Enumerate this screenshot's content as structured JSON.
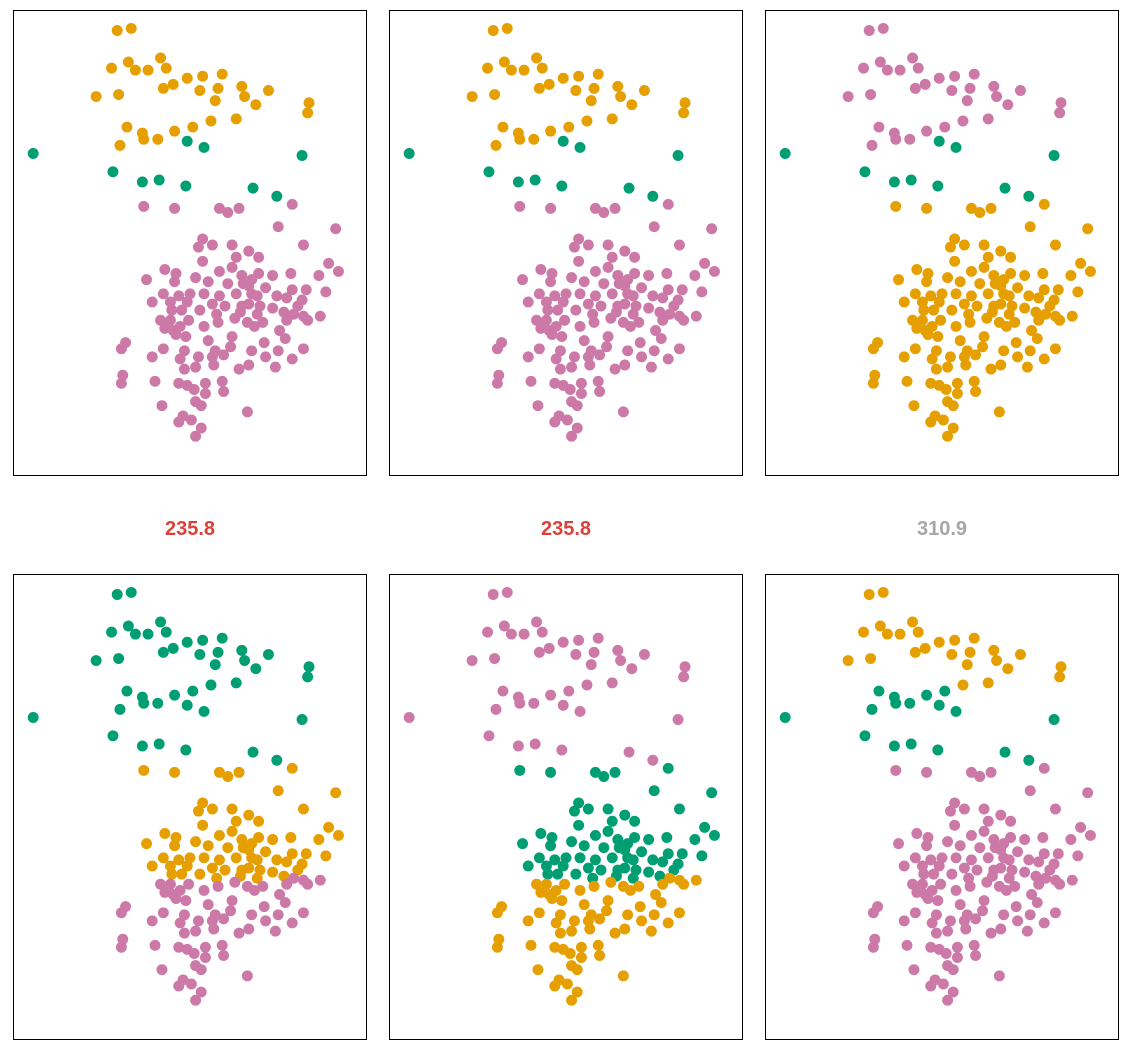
{
  "colors": {
    "orange": "#E69F00",
    "green": "#009E73",
    "pink": "#CC79A7"
  },
  "scores": [
    {
      "label": "235.8",
      "color": "#D9413A"
    },
    {
      "label": "235.8",
      "color": "#D9413A"
    },
    {
      "label": "310.9",
      "color": "#A6A6A6"
    }
  ],
  "chart_data": {
    "type": "scatter",
    "points": [
      [
        2.8,
        0.55
      ],
      [
        3.8,
        0.45
      ],
      [
        2.4,
        2.4
      ],
      [
        3.6,
        2.1
      ],
      [
        4.1,
        2.5
      ],
      [
        5.9,
        1.9
      ],
      [
        5.0,
        2.5
      ],
      [
        6.3,
        2.4
      ],
      [
        7.8,
        2.9
      ],
      [
        8.9,
        2.8
      ],
      [
        10.3,
        2.7
      ],
      [
        6.8,
        3.2
      ],
      [
        10.0,
        3.4
      ],
      [
        11.7,
        3.3
      ],
      [
        13.6,
        3.5
      ],
      [
        1.3,
        3.8
      ],
      [
        2.9,
        3.7
      ],
      [
        6.1,
        3.4
      ],
      [
        8.7,
        3.5
      ],
      [
        9.8,
        4.0
      ],
      [
        11.9,
        3.8
      ],
      [
        12.7,
        4.2
      ],
      [
        16.5,
        4.1
      ],
      [
        16.4,
        4.6
      ],
      [
        11.3,
        4.9
      ],
      [
        9.5,
        5.0
      ],
      [
        8.2,
        5.3
      ],
      [
        6.9,
        5.5
      ],
      [
        4.6,
        5.6
      ],
      [
        3.5,
        5.3
      ],
      [
        4.7,
        5.9
      ],
      [
        5.7,
        5.9
      ],
      [
        3.0,
        6.2
      ],
      [
        -3.2,
        6.6
      ],
      [
        7.8,
        6.0
      ],
      [
        9.0,
        6.3
      ],
      [
        16.0,
        6.7
      ],
      [
        2.5,
        7.5
      ],
      [
        4.6,
        8.0
      ],
      [
        5.8,
        7.9
      ],
      [
        7.7,
        8.2
      ],
      [
        12.5,
        8.3
      ],
      [
        14.2,
        8.7
      ],
      [
        4.7,
        9.2
      ],
      [
        6.9,
        9.3
      ],
      [
        10.1,
        9.3
      ],
      [
        11.5,
        9.3
      ],
      [
        10.7,
        9.5
      ],
      [
        15.3,
        9.1
      ],
      [
        14.3,
        10.2
      ],
      [
        18.4,
        10.3
      ],
      [
        8.9,
        10.8
      ],
      [
        8.6,
        11.2
      ],
      [
        9.6,
        11.1
      ],
      [
        11.0,
        11.1
      ],
      [
        12.2,
        11.4
      ],
      [
        16.1,
        11.1
      ],
      [
        11.3,
        11.7
      ],
      [
        12.9,
        11.7
      ],
      [
        17.9,
        12.0
      ],
      [
        8.9,
        11.9
      ],
      [
        6.2,
        12.3
      ],
      [
        7.0,
        12.5
      ],
      [
        8.4,
        12.7
      ],
      [
        10.1,
        12.4
      ],
      [
        11.0,
        12.2
      ],
      [
        11.7,
        12.6
      ],
      [
        12.4,
        12.8
      ],
      [
        12.9,
        12.5
      ],
      [
        13.9,
        12.6
      ],
      [
        15.2,
        12.5
      ],
      [
        17.2,
        12.6
      ],
      [
        18.6,
        12.4
      ],
      [
        4.9,
        12.8
      ],
      [
        6.9,
        12.9
      ],
      [
        9.3,
        12.9
      ],
      [
        10.7,
        13.0
      ],
      [
        11.8,
        13.0
      ],
      [
        12.2,
        13.1
      ],
      [
        13.4,
        13.2
      ],
      [
        15.3,
        13.3
      ],
      [
        16.3,
        13.3
      ],
      [
        17.7,
        13.4
      ],
      [
        6.1,
        13.5
      ],
      [
        7.2,
        13.6
      ],
      [
        8.0,
        13.5
      ],
      [
        9.0,
        13.5
      ],
      [
        10.1,
        13.6
      ],
      [
        11.3,
        13.5
      ],
      [
        12.4,
        13.5
      ],
      [
        12.8,
        13.6
      ],
      [
        14.2,
        13.6
      ],
      [
        14.9,
        13.7
      ],
      [
        16.0,
        13.8
      ],
      [
        5.3,
        13.9
      ],
      [
        6.6,
        13.9
      ],
      [
        7.8,
        13.9
      ],
      [
        9.6,
        14.0
      ],
      [
        10.5,
        14.1
      ],
      [
        11.7,
        14.1
      ],
      [
        12.2,
        14.0
      ],
      [
        13.0,
        14.1
      ],
      [
        13.9,
        14.2
      ],
      [
        15.7,
        14.1
      ],
      [
        6.7,
        14.3
      ],
      [
        7.4,
        14.3
      ],
      [
        8.7,
        14.3
      ],
      [
        9.9,
        14.5
      ],
      [
        11.6,
        14.4
      ],
      [
        12.8,
        14.5
      ],
      [
        14.7,
        14.4
      ],
      [
        15.4,
        14.5
      ],
      [
        16.1,
        14.6
      ],
      [
        17.3,
        14.6
      ],
      [
        5.9,
        14.8
      ],
      [
        6.6,
        14.8
      ],
      [
        7.9,
        14.8
      ],
      [
        10.0,
        14.9
      ],
      [
        11.2,
        14.7
      ],
      [
        12.1,
        14.9
      ],
      [
        13.2,
        14.9
      ],
      [
        14.9,
        14.8
      ],
      [
        16.4,
        14.8
      ],
      [
        6.2,
        15.2
      ],
      [
        6.8,
        15.3
      ],
      [
        7.3,
        15.1
      ],
      [
        9.0,
        15.1
      ],
      [
        12.6,
        15.1
      ],
      [
        14.4,
        15.3
      ],
      [
        7.0,
        15.5
      ],
      [
        7.7,
        15.6
      ],
      [
        9.3,
        15.8
      ],
      [
        11.0,
        15.6
      ],
      [
        13.3,
        15.9
      ],
      [
        14.8,
        15.7
      ],
      [
        3.4,
        15.9
      ],
      [
        3.1,
        16.2
      ],
      [
        6.1,
        16.2
      ],
      [
        7.6,
        16.3
      ],
      [
        9.8,
        16.3
      ],
      [
        10.9,
        16.1
      ],
      [
        12.4,
        16.3
      ],
      [
        14.3,
        16.3
      ],
      [
        16.1,
        16.2
      ],
      [
        5.3,
        16.6
      ],
      [
        7.3,
        16.7
      ],
      [
        8.6,
        16.6
      ],
      [
        9.6,
        16.6
      ],
      [
        10.4,
        16.5
      ],
      [
        13.4,
        16.6
      ],
      [
        15.3,
        16.7
      ],
      [
        7.6,
        17.2
      ],
      [
        8.4,
        17.1
      ],
      [
        9.7,
        17.0
      ],
      [
        11.5,
        17.2
      ],
      [
        12.2,
        17.0
      ],
      [
        14.1,
        17.1
      ],
      [
        3.2,
        17.5
      ],
      [
        3.1,
        17.9
      ],
      [
        5.5,
        17.8
      ],
      [
        7.2,
        17.9
      ],
      [
        7.8,
        18.0
      ],
      [
        9.1,
        17.9
      ],
      [
        10.3,
        17.8
      ],
      [
        10.4,
        18.3
      ],
      [
        8.3,
        18.2
      ],
      [
        8.4,
        18.8
      ],
      [
        9.1,
        18.4
      ],
      [
        6.0,
        19.0
      ],
      [
        8.8,
        19.0
      ],
      [
        7.5,
        19.5
      ],
      [
        7.2,
        19.8
      ],
      [
        8.1,
        19.7
      ],
      [
        12.1,
        19.3
      ],
      [
        8.8,
        20.1
      ],
      [
        8.4,
        20.5
      ]
    ],
    "panels": [
      {
        "groups": {
          "orange": [
            0,
            32
          ],
          "green": [
            33,
            42
          ],
          "pink": [
            43,
            175
          ]
        },
        "score": "235.8"
      },
      {
        "groups": {
          "orange": [
            0,
            32
          ],
          "green": [
            33,
            42
          ],
          "pink": [
            43,
            175
          ]
        },
        "score": "235.8"
      },
      {
        "groups": {
          "pink": [
            0,
            32
          ],
          "green": [
            33,
            42
          ],
          "orange": [
            43,
            175
          ]
        },
        "score": "310.9"
      },
      {
        "groups": {
          "green": [
            0,
            42
          ],
          "orange": [
            43,
            110
          ],
          "pink": [
            111,
            175
          ]
        }
      },
      {
        "groups": {
          "pink": [
            0,
            42
          ],
          "green": [
            43,
            110
          ],
          "orange": [
            111,
            175
          ]
        }
      },
      {
        "groups": {
          "orange": [
            0,
            25
          ],
          "green": [
            26,
            42
          ],
          "pink": [
            43,
            175
          ]
        }
      }
    ]
  }
}
